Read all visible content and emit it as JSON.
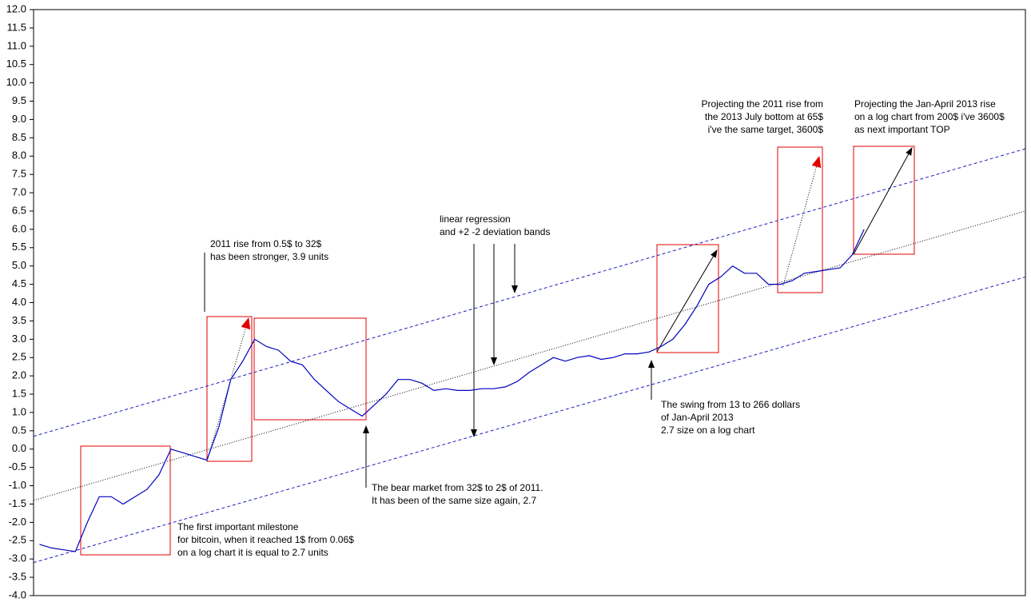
{
  "chart_data": {
    "type": "line",
    "ylim": [
      -4,
      12
    ],
    "yticks": [
      {
        "value": -4,
        "label": "-4.0"
      },
      -3.5,
      {
        "value": -3,
        "label": "-3.0"
      },
      -2.5,
      {
        "value": -2,
        "label": "-2.0"
      },
      -1.5,
      {
        "value": -1,
        "label": "-1.0"
      },
      -0.5,
      {
        "value": 0,
        "label": "0.0"
      },
      0.5,
      {
        "value": 1,
        "label": "1.0"
      },
      1.5,
      {
        "value": 2,
        "label": "2.0"
      },
      2.5,
      {
        "value": 3,
        "label": "3.0"
      },
      3.5,
      {
        "value": 4,
        "label": "4.0"
      },
      4.5,
      {
        "value": 5,
        "label": "5.0"
      },
      5.5,
      {
        "value": 6,
        "label": "6.0"
      },
      6.5,
      {
        "value": 7,
        "label": "7.0"
      },
      7.5,
      {
        "value": 8,
        "label": "8.0"
      },
      8.5,
      {
        "value": 9,
        "label": "9.0"
      },
      9.5,
      {
        "value": 10,
        "label": "10.0"
      },
      10.5,
      {
        "value": 11,
        "label": "11.0"
      },
      11.5,
      {
        "value": 12,
        "label": "12.0"
      }
    ],
    "categories": [
      null,
      null,
      null,
      null,
      null,
      null,
      null,
      null,
      null,
      null,
      null,
      null,
      null,
      null,
      null,
      null,
      null,
      null,
      null,
      null,
      null,
      null,
      null,
      null,
      null,
      null,
      null,
      null,
      null,
      null,
      null,
      null,
      null,
      null,
      null,
      null,
      null,
      null,
      null,
      null,
      null,
      null,
      null,
      null,
      null,
      null,
      null,
      null,
      null,
      null,
      null,
      null,
      null,
      null,
      null,
      null,
      null,
      null,
      null,
      null,
      null,
      null,
      null,
      null,
      null,
      null,
      null,
      null,
      null,
      null,
      null,
      null,
      null,
      null,
      null,
      null,
      null,
      null,
      null,
      null,
      null,
      null,
      null
    ],
    "series": [
      {
        "color": "#0000c0",
        "values": [
          -2.6,
          -2.7,
          -2.75,
          -2.8,
          -2.0,
          -1.3,
          -1.3,
          -1.5,
          -1.3,
          -1.1,
          -0.7,
          0.0,
          -0.1,
          -0.2,
          -0.3,
          0.6,
          1.9,
          2.4,
          3.0,
          2.8,
          2.7,
          2.4,
          2.3,
          1.9,
          1.6,
          1.3,
          1.1,
          0.9,
          1.2,
          1.5,
          1.9,
          1.9,
          1.8,
          1.6,
          1.65,
          1.6,
          1.6,
          1.65,
          1.65,
          1.7,
          1.85,
          2.1,
          2.3,
          2.5,
          2.4,
          2.5,
          2.55,
          2.45,
          2.5,
          2.6,
          2.6,
          2.65,
          2.8,
          3.0,
          3.4,
          3.9,
          4.5,
          4.7,
          5.0,
          4.8,
          4.8,
          4.5,
          4.5,
          4.6,
          4.8,
          4.85,
          4.9,
          4.95,
          5.3,
          6.0,
          null,
          null,
          null,
          null,
          null,
          null,
          null,
          null,
          null,
          null,
          null,
          null,
          null
        ]
      }
    ],
    "trend_lines": [
      {
        "start": 0.35,
        "end": 8.2,
        "color": "#2020c0",
        "dash": "4 3"
      },
      {
        "start": -1.4,
        "end": 6.5,
        "color": "#000000",
        "dash": "1 2"
      },
      {
        "start": -3.1,
        "end": 4.7,
        "color": "#2020c0",
        "dash": "4 3"
      }
    ],
    "annotations": [
      {
        "lines": [
          "2011 rise from 0.5$ to 32$",
          "has been stronger, 3.9 units"
        ]
      },
      {
        "lines": [
          "linear regression",
          "and +2 -2 deviation bands"
        ]
      },
      {
        "lines": [
          "Projecting the 2011 rise from",
          "the 2013 July bottom at 65$",
          "i've the same target, 3600$"
        ]
      },
      {
        "lines": [
          "Projecting the Jan-April 2013 rise",
          "on a log chart from 200$ i've 3600$",
          "as next important TOP"
        ]
      },
      {
        "lines": [
          "The swing from 13 to 266 dollars",
          "of Jan-April 2013",
          "2.7 size on a log chart"
        ]
      },
      {
        "lines": [
          "The bear market from 32$ to 2$ of 2011.",
          "It has been of the same size again, 2.7"
        ]
      },
      {
        "lines": [
          "The first important milestone",
          "for bitcoin, when it reached 1$ from 0.06$",
          "on a log chart it is equal to 2.7 units"
        ]
      }
    ]
  }
}
